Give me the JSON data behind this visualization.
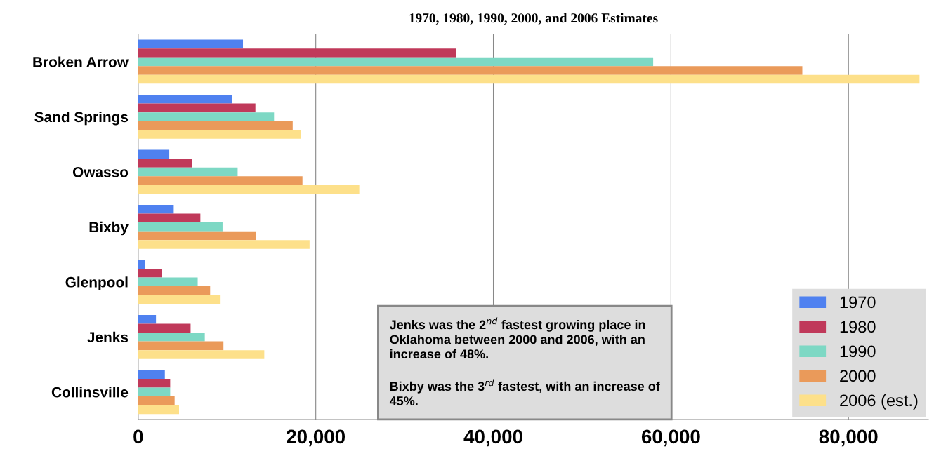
{
  "chart_data": {
    "type": "bar",
    "orientation": "horizontal",
    "title": "1970, 1980, 1990, 2000, and 2006 Estimates",
    "categories": [
      "Broken Arrow",
      "Sand Springs",
      "Owasso",
      "Bixby",
      "Glenpool",
      "Jenks",
      "Collinsville"
    ],
    "series": [
      {
        "name": "1970",
        "color": "#4f81f0",
        "values": [
          11800,
          10600,
          3500,
          4000,
          800,
          2000,
          3000
        ]
      },
      {
        "name": "1980",
        "color": "#c0395a",
        "values": [
          35800,
          13200,
          6100,
          7000,
          2700,
          5900,
          3600
        ]
      },
      {
        "name": "1990",
        "color": "#7dd8c4",
        "values": [
          58000,
          15300,
          11200,
          9500,
          6700,
          7500,
          3600
        ]
      },
      {
        "name": "2000",
        "color": "#ea9a5a",
        "values": [
          74800,
          17400,
          18500,
          13300,
          8100,
          9600,
          4100
        ]
      },
      {
        "name": "2006 (est.)",
        "color": "#fde08a",
        "values": [
          88000,
          18300,
          24900,
          19300,
          9200,
          14200,
          4600
        ]
      }
    ],
    "xlim": [
      0,
      89000
    ],
    "xticks": [
      0,
      {
        "value": 20000,
        "label": "20,000"
      },
      {
        "value": 40000,
        "label": "40,000"
      },
      {
        "value": 60000,
        "label": "60,000"
      },
      {
        "value": 80000,
        "label": "80,000"
      }
    ],
    "grid": "x",
    "legend": "bottom right",
    "annotations": [
      "Jenks was the 2$^{nd}$ fastest growing place in Oklahoma between 2000 and 2006, with an increase of 48%.",
      "Bixby was the 3$^{rd}$ fastest, with an increase of 45%."
    ]
  }
}
